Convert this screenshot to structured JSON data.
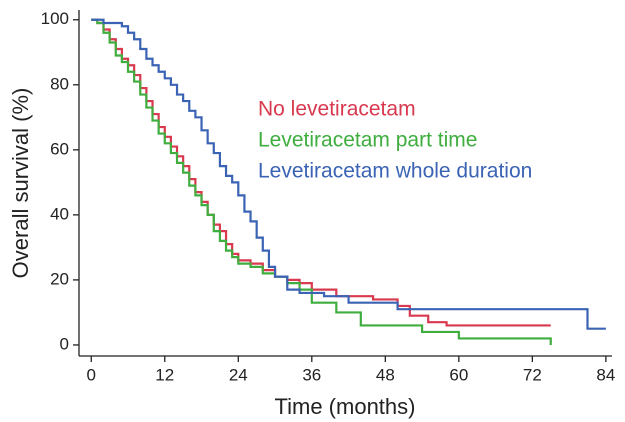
{
  "chart_data": {
    "type": "step",
    "x_label": "Time (months)",
    "y_label": "Overall survival (%)",
    "xlim": [
      -2,
      85
    ],
    "ylim": [
      -3.4,
      103
    ],
    "xticks": [
      0,
      12,
      24,
      36,
      48,
      60,
      72,
      84
    ],
    "yticks": [
      0,
      20,
      40,
      60,
      80,
      100
    ],
    "grid": false,
    "legend": "upper right",
    "series": [
      {
        "name": "No levetiracetam",
        "color": "#d9394e",
        "x": [
          0,
          1,
          2,
          3,
          4,
          5,
          6,
          7,
          8,
          9,
          10,
          11,
          12,
          13,
          14,
          15,
          16,
          17,
          18,
          19,
          20,
          21,
          22,
          23,
          24,
          26,
          28,
          30,
          32,
          34,
          36,
          40,
          46,
          50,
          52,
          55,
          58,
          75
        ],
        "values": [
          100,
          99,
          97,
          94,
          91,
          88,
          86,
          83,
          79,
          75,
          71,
          67,
          64,
          61,
          58,
          55,
          51,
          47,
          44,
          40,
          37,
          35,
          31,
          28,
          26,
          25,
          23,
          21,
          20,
          19,
          17,
          15,
          14,
          12,
          9,
          7,
          6,
          6
        ]
      },
      {
        "name": "Levetiracetam part time",
        "color": "#3fae3f",
        "x": [
          0,
          1,
          2,
          3,
          4,
          5,
          6,
          7,
          8,
          9,
          10,
          11,
          12,
          13,
          14,
          15,
          16,
          17,
          18,
          19,
          20,
          21,
          22,
          23,
          24,
          26,
          28,
          30,
          32,
          34,
          36,
          40,
          44,
          54,
          60,
          75
        ],
        "values": [
          100,
          99,
          96,
          93,
          89,
          87,
          84,
          81,
          77,
          73,
          69,
          65,
          62,
          59,
          56,
          53,
          49,
          46,
          43,
          40,
          35,
          32,
          29,
          27,
          25,
          24,
          22,
          21,
          19,
          17,
          13,
          10,
          6,
          4,
          2,
          0
        ]
      },
      {
        "name": "Levetiracetam whole duration",
        "color": "#3b63b4",
        "x": [
          0,
          2,
          5,
          6,
          7,
          8,
          9,
          10,
          11,
          12,
          13,
          14,
          15,
          16,
          17,
          18,
          19,
          20,
          21,
          22,
          23,
          24,
          25,
          26,
          27,
          28,
          29,
          30,
          32,
          34,
          38,
          42,
          50,
          81,
          84
        ],
        "values": [
          100,
          99,
          98,
          96,
          94,
          91,
          88,
          86,
          84,
          82,
          80,
          77,
          75,
          72,
          70,
          66,
          62,
          59,
          55,
          52,
          50,
          46,
          41,
          38,
          33,
          29,
          24,
          21,
          17,
          16,
          15,
          13,
          11,
          5,
          5
        ]
      }
    ]
  }
}
